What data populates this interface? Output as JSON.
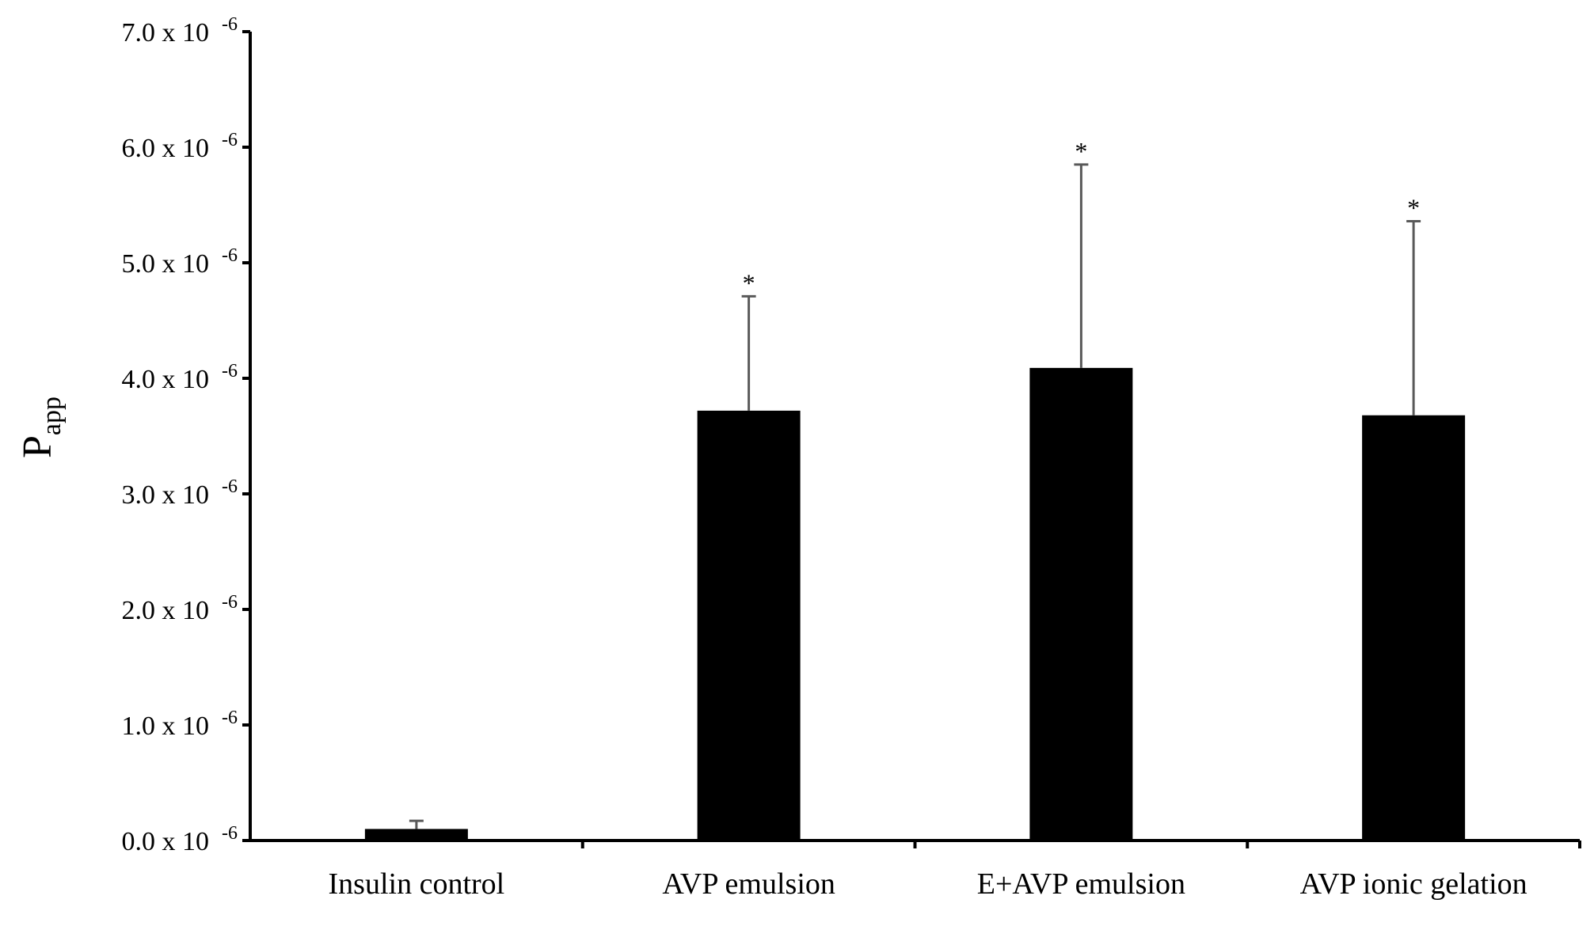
{
  "chart_data": {
    "type": "bar",
    "title": "",
    "xlabel": "",
    "ylabel": {
      "base": "P",
      "subscript": "app"
    },
    "ylim": [
      0.0,
      7.0
    ],
    "y_ticks": [
      {
        "value": 0.0,
        "mantissa": "0.0 x 10",
        "exponent": "-6"
      },
      {
        "value": 1.0,
        "mantissa": "1.0 x 10",
        "exponent": "-6"
      },
      {
        "value": 2.0,
        "mantissa": "2.0 x 10",
        "exponent": "-6"
      },
      {
        "value": 3.0,
        "mantissa": "3.0 x 10",
        "exponent": "-6"
      },
      {
        "value": 4.0,
        "mantissa": "4.0 x 10",
        "exponent": "-6"
      },
      {
        "value": 5.0,
        "mantissa": "5.0 x 10",
        "exponent": "-6"
      },
      {
        "value": 6.0,
        "mantissa": "6.0 x 10",
        "exponent": "-6"
      },
      {
        "value": 7.0,
        "mantissa": "7.0 x 10",
        "exponent": "-6"
      }
    ],
    "categories": [
      "Insulin control",
      "AVP emulsion",
      "E+AVP emulsion",
      "AVP ionic gelation"
    ],
    "values": [
      0.1,
      3.72,
      4.09,
      3.68
    ],
    "error_upper": [
      0.17,
      4.71,
      5.85,
      5.36
    ],
    "significance": [
      "",
      "*",
      "*",
      "*"
    ],
    "bar_color": "#000000",
    "error_color": "#595959",
    "grid": false,
    "legend": "none"
  }
}
